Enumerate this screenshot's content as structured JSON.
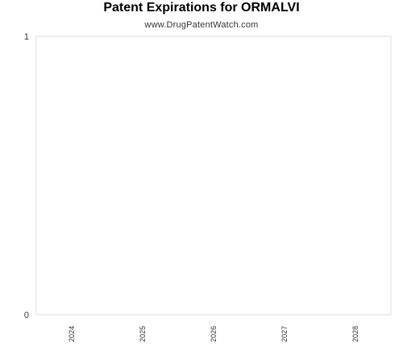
{
  "chart_data": {
    "type": "bar",
    "title": "Patent Expirations for ORMALVI",
    "subtitle": "www.DrugPatentWatch.com",
    "categories": [
      "2024",
      "2025",
      "2026",
      "2027",
      "2028"
    ],
    "values": [
      0,
      0,
      0,
      0,
      0
    ],
    "ylim": [
      0,
      1
    ],
    "yticks": [
      "0",
      "1"
    ],
    "xlabel": "",
    "ylabel": "",
    "grid": false
  },
  "colors": {
    "frame": "#dcdcdc",
    "text": "#333333"
  }
}
